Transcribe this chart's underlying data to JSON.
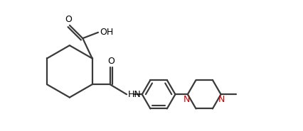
{
  "background_color": "#ffffff",
  "line_color": "#3a3a3a",
  "text_color": "#000000",
  "n_color": "#cc0000",
  "line_width": 1.6,
  "figsize": [
    4.26,
    1.85
  ],
  "dpi": 100,
  "xlim": [
    0,
    10.5
  ],
  "ylim": [
    0,
    5.5
  ]
}
